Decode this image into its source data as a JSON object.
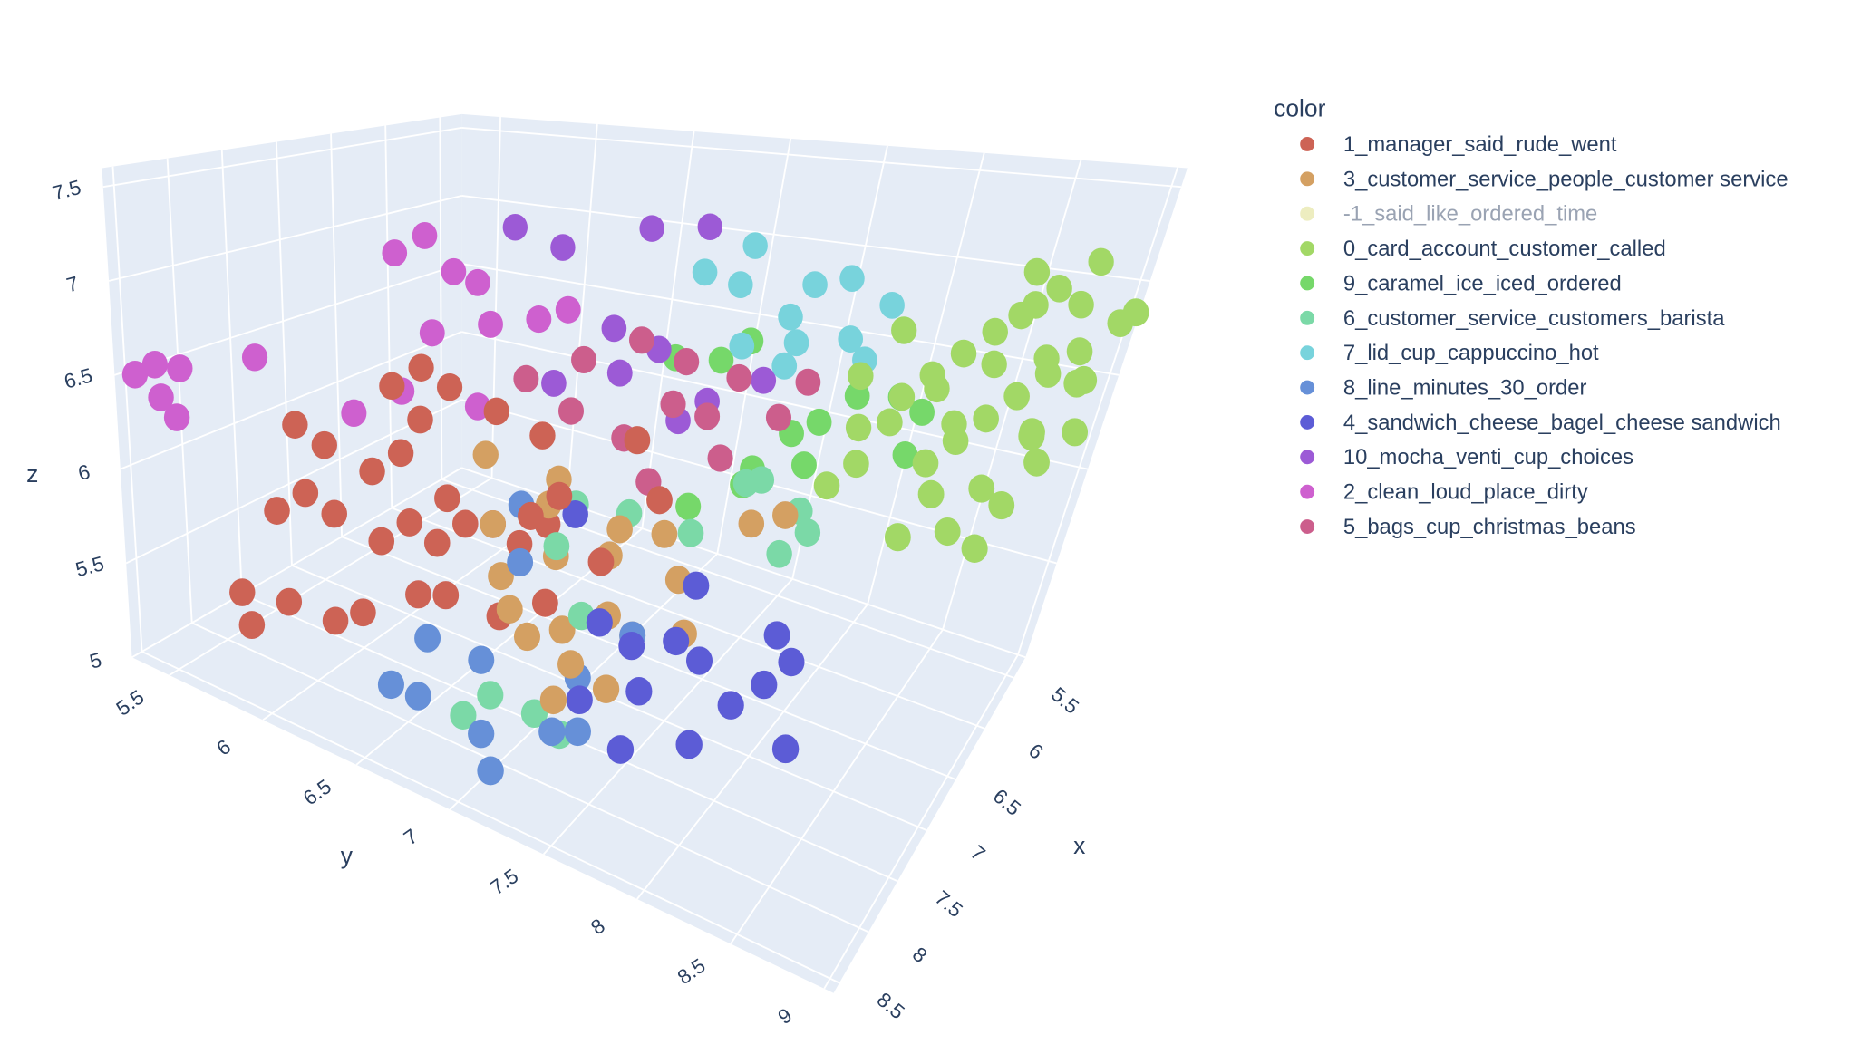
{
  "chart_data": {
    "type": "scatter3d",
    "legend": {
      "title": "color",
      "placement": "top-right"
    },
    "axes": {
      "x": {
        "title": "x",
        "range": [
          5.3,
          8.6
        ],
        "tick_labels": [
          "5.5",
          "6",
          "6.5",
          "7",
          "7.5",
          "8",
          "8.5"
        ],
        "ticks": [
          5.5,
          6,
          6.5,
          7,
          7.5,
          8,
          8.5
        ]
      },
      "y": {
        "title": "y",
        "range": [
          5.3,
          9.05
        ],
        "tick_labels": [
          "5.5",
          "6",
          "6.5",
          "7",
          "7.5",
          "8",
          "8.5",
          "9"
        ],
        "ticks": [
          5.5,
          6,
          6.5,
          7,
          7.5,
          8,
          8.5,
          9
        ]
      },
      "z": {
        "title": "z",
        "range": [
          5.0,
          7.6
        ],
        "tick_labels": [
          "5",
          "5.5",
          "6",
          "6.5",
          "7",
          "7.5"
        ],
        "ticks": [
          5,
          5.5,
          6,
          6.5,
          7,
          7.5
        ]
      }
    },
    "grid": true,
    "background_color": "#e5ecf6",
    "series": [
      {
        "name": "1_manager_said_rude_went",
        "color": "#cd6355",
        "visible": true,
        "points": [
          [
            8.2,
            5.7,
            5.4
          ],
          [
            8.3,
            5.8,
            5.3
          ],
          [
            8.1,
            5.9,
            5.4
          ],
          [
            8.0,
            6.1,
            5.35
          ],
          [
            7.9,
            6.2,
            5.4
          ],
          [
            8.2,
            5.9,
            5.9
          ],
          [
            8.1,
            6.0,
            6.0
          ],
          [
            8.0,
            6.1,
            5.9
          ],
          [
            7.9,
            6.3,
            5.8
          ],
          [
            7.8,
            6.4,
            5.9
          ],
          [
            7.7,
            6.5,
            5.8
          ],
          [
            7.6,
            6.6,
            5.9
          ],
          [
            7.8,
            6.2,
            6.1
          ],
          [
            7.9,
            6.0,
            6.2
          ],
          [
            8.0,
            5.9,
            6.3
          ],
          [
            7.7,
            6.3,
            6.2
          ],
          [
            7.6,
            6.5,
            6.0
          ],
          [
            7.5,
            6.7,
            5.9
          ],
          [
            7.4,
            6.8,
            5.8
          ],
          [
            7.3,
            6.9,
            5.9
          ],
          [
            7.6,
            6.2,
            6.5
          ],
          [
            7.5,
            6.3,
            6.6
          ],
          [
            7.4,
            6.4,
            6.5
          ],
          [
            7.3,
            6.6,
            6.4
          ],
          [
            7.2,
            6.8,
            6.3
          ],
          [
            7.7,
            6.4,
            6.4
          ],
          [
            7.5,
            6.9,
            6.0
          ],
          [
            7.4,
            7.0,
            6.1
          ],
          [
            7.8,
            6.6,
            5.6
          ],
          [
            7.6,
            6.8,
            5.5
          ],
          [
            7.5,
            7.0,
            5.6
          ],
          [
            7.3,
            7.2,
            5.8
          ],
          [
            7.2,
            7.3,
            6.4
          ],
          [
            7.1,
            7.4,
            6.1
          ],
          [
            7.9,
            6.5,
            5.6
          ]
        ]
      },
      {
        "name": "3_customer_service_people_customer service",
        "color": "#d4a062",
        "visible": true,
        "points": [
          [
            7.4,
            6.6,
            6.2
          ],
          [
            7.2,
            6.9,
            6.1
          ],
          [
            7.5,
            6.7,
            5.9
          ],
          [
            7.1,
            7.2,
            5.9
          ],
          [
            7.6,
            6.8,
            5.7
          ],
          [
            7.4,
            7.0,
            5.8
          ],
          [
            7.2,
            7.2,
            5.8
          ],
          [
            7.0,
            7.4,
            5.9
          ],
          [
            7.7,
            6.9,
            5.6
          ],
          [
            7.5,
            7.1,
            5.5
          ],
          [
            7.6,
            7.2,
            5.4
          ],
          [
            7.3,
            7.4,
            5.5
          ],
          [
            7.1,
            7.6,
            5.5
          ],
          [
            7.8,
            7.2,
            5.3
          ],
          [
            7.6,
            7.4,
            5.35
          ],
          [
            6.4,
            7.8,
            5.9
          ],
          [
            6.6,
            7.7,
            5.9
          ],
          [
            7.3,
            6.9,
            6.0
          ],
          [
            7.0,
            7.5,
            5.7
          ],
          [
            7.4,
            7.3,
            5.6
          ],
          [
            7.7,
            7.0,
            5.5
          ]
        ]
      },
      {
        "name": "-1_said_like_ordered_time",
        "color": "#e8e8b0",
        "visible": false,
        "points": []
      },
      {
        "name": "0_card_account_customer_called",
        "color": "#a2d866",
        "visible": true,
        "points": [
          [
            5.6,
            8.7,
            7.0
          ],
          [
            5.7,
            8.6,
            7.1
          ],
          [
            5.5,
            8.8,
            6.9
          ],
          [
            5.4,
            9.0,
            6.8
          ],
          [
            5.5,
            9.1,
            6.9
          ],
          [
            5.8,
            8.5,
            6.8
          ],
          [
            5.9,
            8.4,
            6.7
          ],
          [
            5.6,
            8.9,
            6.7
          ],
          [
            5.7,
            8.8,
            6.6
          ],
          [
            6.0,
            8.3,
            6.6
          ],
          [
            6.1,
            8.2,
            6.5
          ],
          [
            5.8,
            8.7,
            6.5
          ],
          [
            5.5,
            8.9,
            6.5
          ],
          [
            5.9,
            8.6,
            6.4
          ],
          [
            6.0,
            8.5,
            6.3
          ],
          [
            5.7,
            8.8,
            6.3
          ],
          [
            6.2,
            8.2,
            6.4
          ],
          [
            6.1,
            8.4,
            6.2
          ],
          [
            5.8,
            8.9,
            6.2
          ],
          [
            5.6,
            9.0,
            6.3
          ],
          [
            6.0,
            8.7,
            6.1
          ],
          [
            6.2,
            8.5,
            6.1
          ],
          [
            5.9,
            8.8,
            6.0
          ],
          [
            6.3,
            8.1,
            6.2
          ],
          [
            6.1,
            8.6,
            5.9
          ],
          [
            6.3,
            8.4,
            5.9
          ],
          [
            5.5,
            8.7,
            6.6
          ],
          [
            5.7,
            8.5,
            6.6
          ],
          [
            5.9,
            8.3,
            6.5
          ],
          [
            6.0,
            8.9,
            6.4
          ],
          [
            5.6,
            8.6,
            6.9
          ],
          [
            5.8,
            8.4,
            6.3
          ],
          [
            6.2,
            8.0,
            6.6
          ],
          [
            6.4,
            8.0,
            6.1
          ],
          [
            6.2,
            8.8,
            5.9
          ],
          [
            5.4,
            8.8,
            7.1
          ],
          [
            5.7,
            9.0,
            6.6
          ],
          [
            6.0,
            8.1,
            6.8
          ],
          [
            6.1,
            8.0,
            6.3
          ],
          [
            5.5,
            8.5,
            6.8
          ]
        ]
      },
      {
        "name": "9_caramel_ice_iced_ordered",
        "color": "#76d86a",
        "visible": true,
        "points": [
          [
            6.2,
            7.0,
            6.5
          ],
          [
            6.1,
            7.2,
            6.5
          ],
          [
            6.0,
            7.3,
            6.6
          ],
          [
            5.7,
            7.8,
            6.3
          ],
          [
            5.6,
            8.0,
            6.3
          ],
          [
            5.5,
            8.1,
            6.2
          ],
          [
            5.6,
            8.1,
            6.0
          ],
          [
            6.0,
            7.7,
            6.0
          ],
          [
            6.2,
            7.5,
            6.0
          ],
          [
            6.5,
            7.3,
            5.85
          ],
          [
            6.3,
            7.5,
            5.95
          ],
          [
            5.9,
            7.7,
            6.2
          ],
          [
            6.0,
            7.6,
            6.15
          ]
        ]
      },
      {
        "name": "6_customer_service_customers_barista",
        "color": "#7bd9a7",
        "visible": true,
        "points": [
          [
            7.2,
            7.0,
            6.0
          ],
          [
            7.0,
            7.2,
            5.95
          ],
          [
            7.4,
            7.0,
            5.85
          ],
          [
            6.3,
            7.6,
            6.0
          ],
          [
            6.2,
            7.8,
            5.85
          ],
          [
            6.3,
            7.9,
            5.8
          ],
          [
            6.4,
            7.8,
            5.7
          ],
          [
            7.9,
            6.9,
            5.25
          ],
          [
            8.0,
            6.8,
            5.15
          ],
          [
            7.8,
            7.1,
            5.2
          ],
          [
            7.7,
            7.2,
            5.1
          ],
          [
            7.5,
            7.2,
            5.6
          ],
          [
            6.9,
            7.5,
            5.9
          ],
          [
            6.5,
            7.6,
            6.05
          ]
        ]
      },
      {
        "name": "7_lid_cup_cappuccino_hot",
        "color": "#78d3dc",
        "visible": true,
        "points": [
          [
            5.9,
            7.2,
            7.1
          ],
          [
            6.0,
            7.2,
            6.9
          ],
          [
            5.8,
            7.5,
            6.9
          ],
          [
            5.6,
            7.6,
            6.9
          ],
          [
            5.5,
            7.8,
            6.75
          ],
          [
            5.7,
            7.7,
            6.6
          ],
          [
            5.9,
            7.5,
            6.6
          ],
          [
            6.0,
            7.5,
            6.5
          ],
          [
            6.1,
            7.3,
            6.6
          ],
          [
            5.8,
            7.4,
            6.7
          ],
          [
            6.2,
            7.1,
            7.0
          ],
          [
            5.7,
            7.8,
            6.5
          ]
        ]
      },
      {
        "name": "8_line_minutes_30_order",
        "color": "#6690d8",
        "visible": true,
        "points": [
          [
            7.4,
            6.8,
            6.0
          ],
          [
            7.6,
            6.9,
            5.8
          ],
          [
            8.0,
            6.6,
            5.45
          ],
          [
            8.2,
            6.5,
            5.25
          ],
          [
            8.1,
            6.6,
            5.2
          ],
          [
            8.0,
            6.9,
            5.1
          ],
          [
            8.1,
            7.0,
            5.0
          ],
          [
            7.8,
            7.2,
            5.15
          ],
          [
            7.7,
            7.3,
            5.15
          ],
          [
            7.3,
            7.4,
            5.5
          ],
          [
            7.8,
            6.8,
            5.35
          ],
          [
            7.5,
            7.2,
            5.3
          ]
        ]
      },
      {
        "name": "4_sandwich_cheese_bagel_cheese sandwich",
        "color": "#5c5cd6",
        "visible": true,
        "points": [
          [
            7.2,
            7.0,
            5.95
          ],
          [
            7.0,
            7.6,
            5.7
          ],
          [
            7.2,
            7.6,
            5.5
          ],
          [
            6.8,
            8.0,
            5.5
          ],
          [
            6.8,
            8.1,
            5.4
          ],
          [
            6.9,
            8.0,
            5.3
          ],
          [
            7.1,
            7.9,
            5.25
          ],
          [
            7.0,
            8.2,
            5.1
          ],
          [
            7.6,
            7.5,
            5.1
          ],
          [
            7.4,
            7.8,
            5.15
          ],
          [
            7.4,
            7.5,
            5.3
          ],
          [
            7.7,
            7.3,
            5.3
          ],
          [
            7.3,
            7.4,
            5.45
          ],
          [
            7.5,
            7.3,
            5.6
          ],
          [
            7.1,
            7.7,
            5.4
          ]
        ]
      },
      {
        "name": "10_mocha_venti_cup_choices",
        "color": "#9c5ad6",
        "visible": true,
        "points": [
          [
            6.6,
            6.3,
            7.2
          ],
          [
            6.5,
            6.5,
            7.1
          ],
          [
            6.2,
            6.8,
            7.2
          ],
          [
            6.0,
            7.0,
            7.2
          ],
          [
            6.7,
            6.6,
            6.4
          ],
          [
            6.5,
            6.8,
            6.7
          ],
          [
            6.2,
            7.2,
            6.3
          ],
          [
            6.0,
            7.4,
            6.4
          ],
          [
            6.6,
            6.9,
            6.5
          ],
          [
            6.4,
            7.0,
            6.6
          ],
          [
            6.3,
            7.1,
            6.2
          ]
        ]
      },
      {
        "name": "2_clean_loud_place_dirty",
        "color": "#ce60cf",
        "visible": true,
        "points": [
          [
            8.4,
            5.4,
            6.55
          ],
          [
            8.5,
            5.35,
            6.5
          ],
          [
            8.35,
            5.5,
            6.55
          ],
          [
            8.45,
            5.45,
            6.4
          ],
          [
            8.4,
            5.5,
            6.3
          ],
          [
            8.0,
            5.7,
            6.6
          ],
          [
            7.2,
            6.0,
            7.1
          ],
          [
            7.1,
            6.1,
            7.2
          ],
          [
            7.0,
            6.2,
            7.0
          ],
          [
            6.95,
            6.3,
            6.95
          ],
          [
            7.2,
            6.2,
            6.7
          ],
          [
            7.0,
            6.4,
            6.75
          ],
          [
            6.9,
            6.6,
            6.8
          ],
          [
            6.8,
            6.7,
            6.85
          ],
          [
            7.5,
            6.2,
            6.45
          ],
          [
            7.3,
            6.5,
            6.4
          ],
          [
            7.6,
            6.0,
            6.3
          ]
        ]
      },
      {
        "name": "5_bags_cup_christmas_beans",
        "color": "#cc5e8c",
        "visible": true,
        "points": [
          [
            7.0,
            6.6,
            6.5
          ],
          [
            6.8,
            6.8,
            6.6
          ],
          [
            6.6,
            7.0,
            6.7
          ],
          [
            6.5,
            7.2,
            6.6
          ],
          [
            6.6,
            7.2,
            6.4
          ],
          [
            6.4,
            7.3,
            6.3
          ],
          [
            6.7,
            7.0,
            6.2
          ],
          [
            6.3,
            7.4,
            6.5
          ],
          [
            6.2,
            7.6,
            6.3
          ],
          [
            6.8,
            7.2,
            6.05
          ],
          [
            6.9,
            6.8,
            6.35
          ],
          [
            6.4,
            7.4,
            6.1
          ],
          [
            5.9,
            7.6,
            6.4
          ]
        ]
      }
    ]
  }
}
